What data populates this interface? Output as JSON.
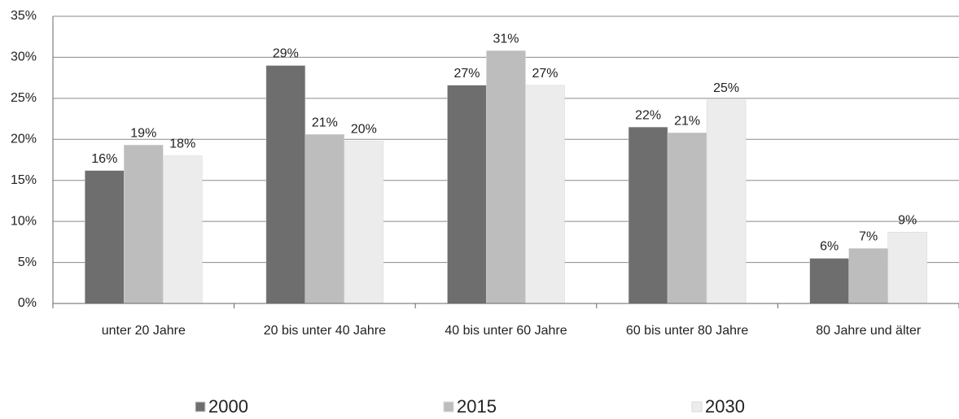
{
  "chart_data": {
    "type": "bar",
    "categories": [
      "unter 20 Jahre",
      "20 bis unter 40 Jahre",
      "40 bis unter 60 Jahre",
      "60 bis unter 80 Jahre",
      "80 Jahre und älter"
    ],
    "series": [
      {
        "name": "2000",
        "color": "#6e6e6e",
        "values": [
          16.2,
          29.0,
          26.6,
          21.5,
          5.5
        ],
        "value_labels": [
          "16%",
          "29%",
          "27%",
          "22%",
          "6%"
        ]
      },
      {
        "name": "2015",
        "color": "#bdbdbd",
        "values": [
          19.3,
          20.6,
          30.8,
          20.8,
          6.7
        ],
        "value_labels": [
          "19%",
          "21%",
          "31%",
          "21%",
          "7%"
        ]
      },
      {
        "name": "2030",
        "color": "#ececec",
        "values": [
          18.0,
          19.8,
          26.6,
          24.8,
          8.7
        ],
        "value_labels": [
          "18%",
          "20%",
          "27%",
          "25%",
          "9%"
        ]
      }
    ],
    "ylim": [
      0,
      35
    ],
    "yticks": [
      {
        "value": 0,
        "label": "0%"
      },
      {
        "value": 5,
        "label": "5%"
      },
      {
        "value": 10,
        "label": "10%"
      },
      {
        "value": 15,
        "label": "15%"
      },
      {
        "value": 20,
        "label": "20%"
      },
      {
        "value": 25,
        "label": "25%"
      },
      {
        "value": 30,
        "label": "30%"
      },
      {
        "value": 35,
        "label": "35%"
      }
    ],
    "grid": true
  }
}
